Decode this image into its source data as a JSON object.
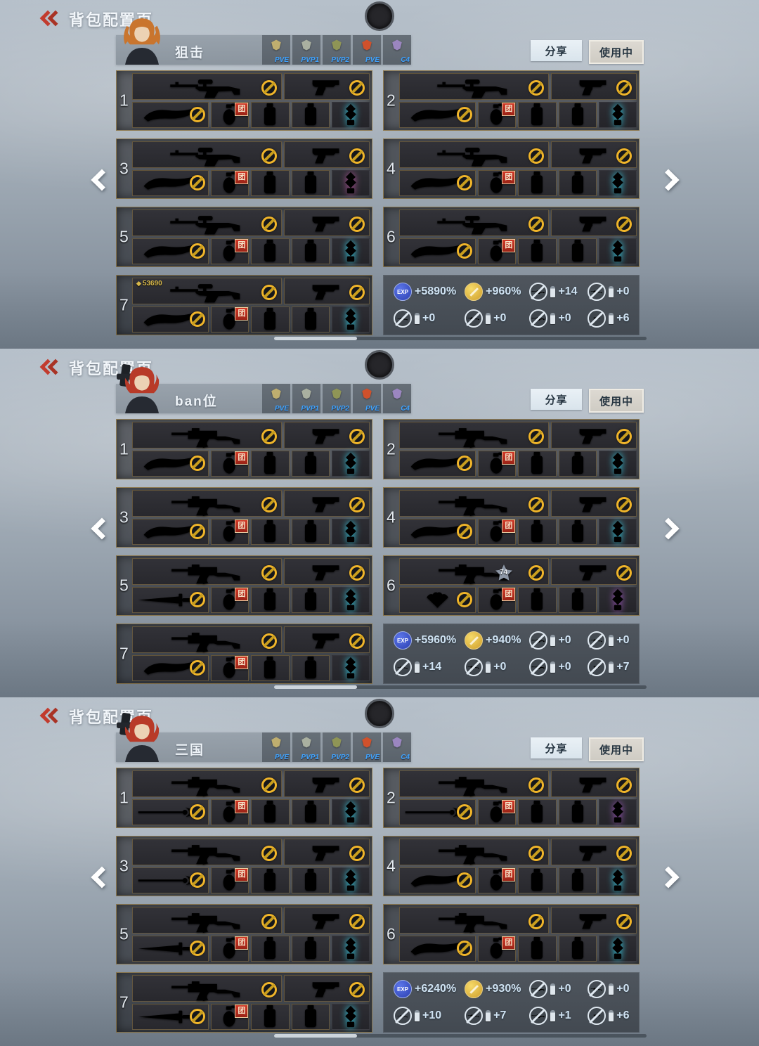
{
  "ui": {
    "title": "背包配置页",
    "share": "分享",
    "in_use": "使用中",
    "badge_mod": "团",
    "exp_label": "EXP",
    "counter_icon": "◆",
    "tab_label_color": "#3fa4ff",
    "accent_gold": "#f0b52a",
    "badge_red": "#c2301f"
  },
  "tabs": [
    {
      "label": "PVE",
      "c": "#bfae6f"
    },
    {
      "label": "PVP1",
      "c": "#aab0a0"
    },
    {
      "label": "PVP2",
      "c": "#8f9556"
    },
    {
      "label": "PVE",
      "c": "#d0512c"
    },
    {
      "label": "C4",
      "c": "#9b86c0"
    }
  ],
  "panels": [
    {
      "name": "狙击",
      "avatar": {
        "hair": "#c9752e",
        "gun": false,
        "twintails": true
      },
      "stats": [
        {
          "i": "exp",
          "v": "+5890%"
        },
        {
          "i": "coin",
          "v": "+960%"
        },
        {
          "i": "sniper",
          "v": "+14"
        },
        {
          "i": "rifle",
          "v": "+0"
        },
        {
          "i": "smg",
          "v": "+0"
        },
        {
          "i": "rifle",
          "v": "+0"
        },
        {
          "i": "sniper",
          "v": "+0"
        },
        {
          "i": "pistol",
          "v": "+6"
        }
      ],
      "slots": [
        {
          "n": "1",
          "pri": {
            "t": "sniper",
            "c": "#9c8a57"
          },
          "sec": {
            "t": "pistol",
            "c": "#a03a54"
          },
          "mel": {
            "t": "knife",
            "c": "#cdb68d"
          },
          "eq": [
            {
              "t": "grenade",
              "c": "#ded3b0",
              "badge": true
            },
            {
              "t": "canister",
              "c": "#cfa84a"
            },
            {
              "t": "canister",
              "c": "#7e54c4"
            }
          ],
          "charm": {
            "t": "charm",
            "c": "#38d2ea"
          }
        },
        {
          "n": "2",
          "pri": {
            "t": "sniper",
            "c": "#5c6672"
          },
          "sec": {
            "t": "pistol",
            "c": "#a8bcc8"
          },
          "mel": {
            "t": "knife",
            "c": "#c9a44a"
          },
          "eq": [
            {
              "t": "grenade",
              "c": "#5b93c9",
              "badge": true
            },
            {
              "t": "canister",
              "c": "#4a7fbe"
            },
            {
              "t": "canister",
              "c": "#3f6fb0"
            }
          ],
          "charm": {
            "t": "charm",
            "c": "#38d2ea"
          }
        },
        {
          "n": "3",
          "pri": {
            "t": "sniper",
            "c": "#5d6cc2"
          },
          "sec": {
            "t": "pistol",
            "c": "#3fa9b8"
          },
          "mel": {
            "t": "knife",
            "c": "#d2a53c"
          },
          "eq": [
            {
              "t": "grenade",
              "c": "#4a90d9",
              "badge": true
            },
            {
              "t": "canister",
              "c": "#4a86d0"
            },
            {
              "t": "canister",
              "c": "#4a7ac8"
            }
          ],
          "charm": {
            "t": "charm",
            "c": "#b0549a"
          }
        },
        {
          "n": "4",
          "pri": {
            "t": "sniper",
            "c": "#aeb8c2"
          },
          "sec": {
            "t": "pistol",
            "c": "#d4b63a"
          },
          "mel": {
            "t": "knife",
            "c": "#e07b22"
          },
          "eq": [
            {
              "t": "grenade",
              "c": "#9a8f3a",
              "badge": true
            },
            {
              "t": "canister",
              "c": "#cfa84a"
            },
            {
              "t": "canister",
              "c": "#c9a23f"
            }
          ],
          "charm": {
            "t": "charm",
            "c": "#38d2ea"
          }
        },
        {
          "n": "5",
          "pri": {
            "t": "sniper",
            "c": "#6f9c8c"
          },
          "sec": {
            "t": "pistol",
            "c": "#4a8fd0"
          },
          "mel": {
            "t": "knife",
            "c": "#3ad0e0"
          },
          "eq": [
            {
              "t": "grenade",
              "c": "#8a5ac9",
              "badge": true
            },
            {
              "t": "canister",
              "c": "#7e54c4"
            },
            {
              "t": "canister",
              "c": "#7448b8"
            }
          ],
          "charm": {
            "t": "charm",
            "c": "#38d2ea"
          }
        },
        {
          "n": "6",
          "pri": {
            "t": "sniper",
            "c": "#d2b44c"
          },
          "sec": {
            "t": "pistol",
            "c": "#8fa4b8"
          },
          "mel": {
            "t": "knife",
            "c": "#9a8fae"
          },
          "eq": [
            {
              "t": "grenade",
              "c": "#cfa84a",
              "badge": true
            },
            {
              "t": "canister",
              "c": "#3fa9b8"
            },
            {
              "t": "canister",
              "c": "#3a9aaa"
            }
          ],
          "charm": {
            "t": "charm",
            "c": "#38d2ea"
          }
        },
        {
          "n": "7",
          "counter": "53690",
          "pri": {
            "t": "sniper",
            "c": "#8a5ad0"
          },
          "sec": {
            "t": "pistol",
            "c": "#b03a46"
          },
          "mel": {
            "t": "knife",
            "c": "#e0b030"
          },
          "eq": [
            {
              "t": "grenade",
              "c": "#c23a30",
              "badge": true
            },
            {
              "t": "canister",
              "c": "#7e54c4"
            },
            {
              "t": "canister",
              "c": "#7448b8"
            }
          ],
          "charm": {
            "t": "charm",
            "c": "#38d2ea"
          }
        }
      ]
    },
    {
      "name": "ban位",
      "avatar": {
        "hair": "#b83a28",
        "gun": true,
        "twintails": false
      },
      "stats": [
        {
          "i": "exp",
          "v": "+5960%"
        },
        {
          "i": "coin",
          "v": "+940%"
        },
        {
          "i": "sniper",
          "v": "+0"
        },
        {
          "i": "rifle",
          "v": "+0"
        },
        {
          "i": "smg",
          "v": "+14"
        },
        {
          "i": "rifle",
          "v": "+0"
        },
        {
          "i": "sniper",
          "v": "+0"
        },
        {
          "i": "pistol",
          "v": "+7"
        }
      ],
      "slots": [
        {
          "n": "1",
          "pri": {
            "t": "rifle",
            "c": "#b4bcc4"
          },
          "sec": {
            "t": "pistol",
            "c": "#a8aeb6"
          },
          "mel": {
            "t": "knife",
            "c": "#b8c0c8"
          },
          "eq": [
            {
              "t": "grenade",
              "c": "#d4b63a",
              "badge": true
            },
            {
              "t": "canister",
              "c": "#cfa84a"
            },
            {
              "t": "canister",
              "c": "#c9a23f"
            }
          ],
          "charm": {
            "t": "charm",
            "c": "#38d2ea"
          }
        },
        {
          "n": "2",
          "pri": {
            "t": "rifle",
            "c": "#4f9e5e"
          },
          "sec": {
            "t": "pistol",
            "c": "#3a9a8a"
          },
          "mel": {
            "t": "knife",
            "c": "#2fa2b2"
          },
          "eq": [
            {
              "t": "grenade",
              "c": "#6ab04a",
              "badge": true
            },
            {
              "t": "canister",
              "c": "#8a5ac9"
            },
            {
              "t": "canister",
              "c": "#7e54c4"
            }
          ],
          "charm": {
            "t": "charm",
            "c": "#38d2ea"
          }
        },
        {
          "n": "3",
          "pri": {
            "t": "rifle",
            "c": "#c24f6e"
          },
          "sec": {
            "t": "pistol",
            "c": "#8a4ac0"
          },
          "mel": {
            "t": "knife",
            "c": "#7a3ab0"
          },
          "eq": [
            {
              "t": "grenade",
              "c": "#8a5ac9",
              "badge": true
            },
            {
              "t": "canister",
              "c": "#7e54c4"
            },
            {
              "t": "canister",
              "c": "#7448b8"
            }
          ],
          "charm": {
            "t": "charm",
            "c": "#38d2ea"
          }
        },
        {
          "n": "4",
          "pri": {
            "t": "rifle",
            "c": "#b03a3a"
          },
          "sec": {
            "t": "pistol",
            "c": "#4a8fd0"
          },
          "mel": {
            "t": "knife",
            "c": "#35c2d6"
          },
          "eq": [
            {
              "t": "grenade",
              "c": "#cfa84a",
              "badge": true
            },
            {
              "t": "canister",
              "c": "#ded3b0"
            },
            {
              "t": "canister",
              "c": "#4a86d0"
            }
          ],
          "charm": {
            "t": "charm",
            "c": "#38d2ea"
          }
        },
        {
          "n": "5",
          "pri": {
            "t": "rifle",
            "c": "#c25050"
          },
          "sec": {
            "t": "pistol",
            "c": "#b04040"
          },
          "mel": {
            "t": "sword",
            "c": "#c4ccd4"
          },
          "eq": [
            {
              "t": "grenade",
              "c": "#aab4be",
              "badge": true
            },
            {
              "t": "canister",
              "c": "#7e54c4"
            },
            {
              "t": "canister",
              "c": "#7448b8"
            }
          ],
          "charm": {
            "t": "charm",
            "c": "#38d2ea"
          }
        },
        {
          "n": "6",
          "star": "74",
          "pri": {
            "t": "rifle",
            "c": "#b2a272"
          },
          "sec": {
            "t": "pistol",
            "c": "#b2a272"
          },
          "mel": {
            "t": "fan",
            "c": "#3f94d6"
          },
          "eq": [
            {
              "t": "grenade",
              "c": "#4a86d0",
              "badge": true
            },
            {
              "t": "canister",
              "c": "#4a7fbe"
            },
            {
              "t": "canister",
              "c": "#3f6fb0"
            }
          ],
          "charm": {
            "t": "charm",
            "c": "#9a55b8"
          }
        },
        {
          "n": "7",
          "pri": {
            "t": "rifle",
            "c": "#b0b09e"
          },
          "sec": {
            "t": "pistol",
            "c": "#4a8fd0"
          },
          "mel": {
            "t": "knife",
            "c": "#d2a53c"
          },
          "eq": [
            {
              "t": "grenade",
              "c": "#cfa84a",
              "badge": true
            },
            {
              "t": "canister",
              "c": "#c9a23f"
            },
            {
              "t": "canister",
              "c": "#caa23a"
            }
          ],
          "charm": {
            "t": "charm",
            "c": "#38d2ea"
          }
        }
      ]
    },
    {
      "name": "三国",
      "avatar": {
        "hair": "#b83a28",
        "gun": true,
        "twintails": false
      },
      "stats": [
        {
          "i": "exp",
          "v": "+6240%"
        },
        {
          "i": "coin",
          "v": "+930%"
        },
        {
          "i": "sniper",
          "v": "+0"
        },
        {
          "i": "rifle",
          "v": "+0"
        },
        {
          "i": "smg",
          "v": "+10"
        },
        {
          "i": "rifle",
          "v": "+7"
        },
        {
          "i": "sniper",
          "v": "+1"
        },
        {
          "i": "pistol",
          "v": "+6"
        }
      ],
      "slots": [
        {
          "n": "1",
          "pri": {
            "t": "rifle",
            "c": "#46557a"
          },
          "sec": {
            "t": "pistol",
            "c": "#9aa6b2"
          },
          "mel": {
            "t": "spear",
            "c": "#d08535"
          },
          "eq": [
            {
              "t": "grenade",
              "c": "#9fb2c9",
              "badge": true
            },
            {
              "t": "canister",
              "c": "#8aa2c2"
            },
            {
              "t": "canister",
              "c": "#7e96bc"
            }
          ],
          "charm": {
            "t": "charm",
            "c": "#38d2ea"
          }
        },
        {
          "n": "2",
          "pri": {
            "t": "rifle",
            "c": "#a0a64e"
          },
          "sec": {
            "t": "pistol",
            "c": "#44a090"
          },
          "mel": {
            "t": "spear",
            "c": "#caa23a"
          },
          "eq": [
            {
              "t": "grenade",
              "c": "#c46a9e",
              "badge": true
            },
            {
              "t": "canister",
              "c": "#ded3b0"
            },
            {
              "t": "canister",
              "c": "#7e54c4"
            }
          ],
          "charm": {
            "t": "charm",
            "c": "#9a55b8"
          }
        },
        {
          "n": "3",
          "pri": {
            "t": "rifle",
            "c": "#b4508e"
          },
          "sec": {
            "t": "pistol",
            "c": "#8a3446"
          },
          "mel": {
            "t": "spear",
            "c": "#d8cba0"
          },
          "eq": [
            {
              "t": "grenade",
              "c": "#4a86d0",
              "badge": true
            },
            {
              "t": "canister",
              "c": "#cfa84a"
            },
            {
              "t": "canister",
              "c": "#c9a23f"
            }
          ],
          "charm": {
            "t": "charm",
            "c": "#38d2ea"
          }
        },
        {
          "n": "4",
          "pri": {
            "t": "rifle",
            "c": "#8f8f52"
          },
          "sec": {
            "t": "pistol",
            "c": "#4a8fd0"
          },
          "mel": {
            "t": "knife",
            "c": "#35c2d6"
          },
          "eq": [
            {
              "t": "grenade",
              "c": "#cfa84a",
              "badge": true
            },
            {
              "t": "canister",
              "c": "#ded3b0"
            },
            {
              "t": "canister",
              "c": "#caa23a"
            }
          ],
          "charm": {
            "t": "charm",
            "c": "#38d2ea"
          }
        },
        {
          "n": "5",
          "pri": {
            "t": "rifle",
            "c": "#4a6ad0"
          },
          "sec": {
            "t": "pistol",
            "c": "#4a7ac8"
          },
          "mel": {
            "t": "sword",
            "c": "#e09a28"
          },
          "eq": [
            {
              "t": "grenade",
              "c": "#cfa84a",
              "badge": true
            },
            {
              "t": "canister",
              "c": "#7e54c4"
            },
            {
              "t": "canister",
              "c": "#7448b8"
            }
          ],
          "charm": {
            "t": "charm",
            "c": "#38d2ea"
          }
        },
        {
          "n": "6",
          "pri": {
            "t": "rifle",
            "c": "#c24444"
          },
          "sec": {
            "t": "pistol",
            "c": "#3c5aa8"
          },
          "mel": {
            "t": "knife",
            "c": "#5a4a6a"
          },
          "eq": [
            {
              "t": "grenade",
              "c": "#c23a30",
              "badge": true
            },
            {
              "t": "canister",
              "c": "#c46a9e"
            },
            {
              "t": "canister",
              "c": "#7e54c4"
            }
          ],
          "charm": {
            "t": "charm",
            "c": "#38d2ea"
          }
        },
        {
          "n": "7",
          "pri": {
            "t": "rifle",
            "c": "#d2527a"
          },
          "sec": {
            "t": "pistol",
            "c": "#c24450"
          },
          "mel": {
            "t": "sword",
            "c": "#c84a3a"
          },
          "eq": [
            {
              "t": "grenade",
              "c": "#6ab04a",
              "badge": true
            },
            {
              "t": "canister",
              "c": "#cfa84a"
            },
            {
              "t": "canister",
              "c": "#ded3b0"
            }
          ],
          "charm": {
            "t": "charm",
            "c": "#38d2ea"
          }
        }
      ]
    }
  ]
}
